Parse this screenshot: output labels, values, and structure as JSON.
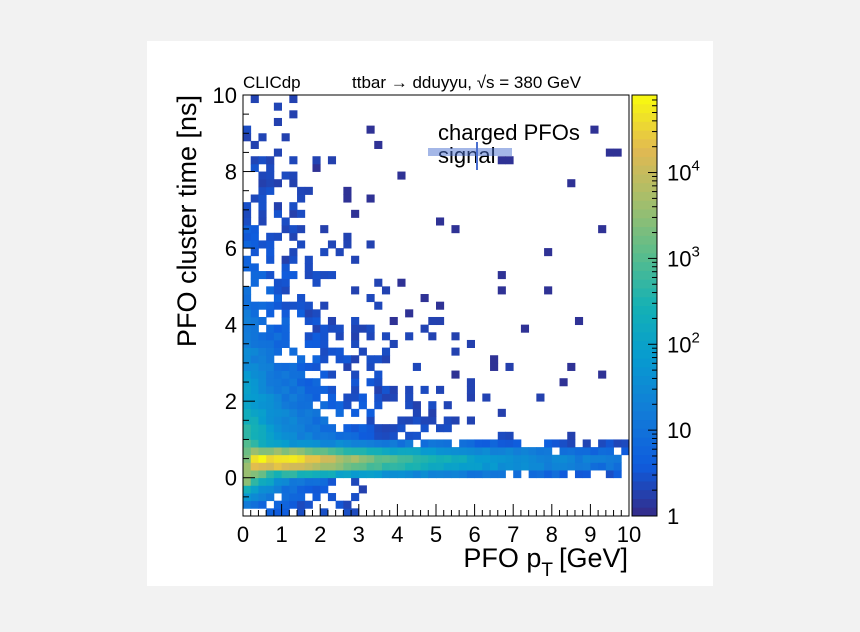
{
  "chart_data": {
    "type": "heatmap",
    "experiment_label": "CLICdp",
    "process_label": "ttbar → dduyyu, √s = 380 GeV",
    "xlabel": "PFO p",
    "xlabel_subscript": "T",
    "xlabel_unit": "[GeV]",
    "ylabel": "PFO cluster time [ns]",
    "xlim": [
      0,
      10
    ],
    "ylim": [
      -1,
      10
    ],
    "x_ticks": [
      "0",
      "1",
      "2",
      "3",
      "4",
      "5",
      "6",
      "7",
      "8",
      "9",
      "10"
    ],
    "y_ticks": [
      "0",
      "2",
      "4",
      "6",
      "8",
      "10"
    ],
    "z_scale": "log",
    "zlim": [
      1,
      80000
    ],
    "z_ticks": [
      {
        "value": 1,
        "base": "1",
        "exp": ""
      },
      {
        "value": 10,
        "base": "10",
        "exp": ""
      },
      {
        "value": 100,
        "base": "10",
        "exp": "2"
      },
      {
        "value": 1000,
        "base": "10",
        "exp": "3"
      },
      {
        "value": 10000,
        "base": "10",
        "exp": "4"
      }
    ],
    "colormap": "parula",
    "legend": [
      {
        "label": "charged PFOs",
        "marker": "hatched-box"
      },
      {
        "label": "signal",
        "marker": "cross"
      }
    ],
    "bins_x": 50,
    "bins_y": 55,
    "distribution_notes": "peak ~6e4 counts near t=0.5 ns at pT 0.5-2 GeV; counts fall steeply with increasing pT and time; sparse single-count bins in upper right"
  }
}
